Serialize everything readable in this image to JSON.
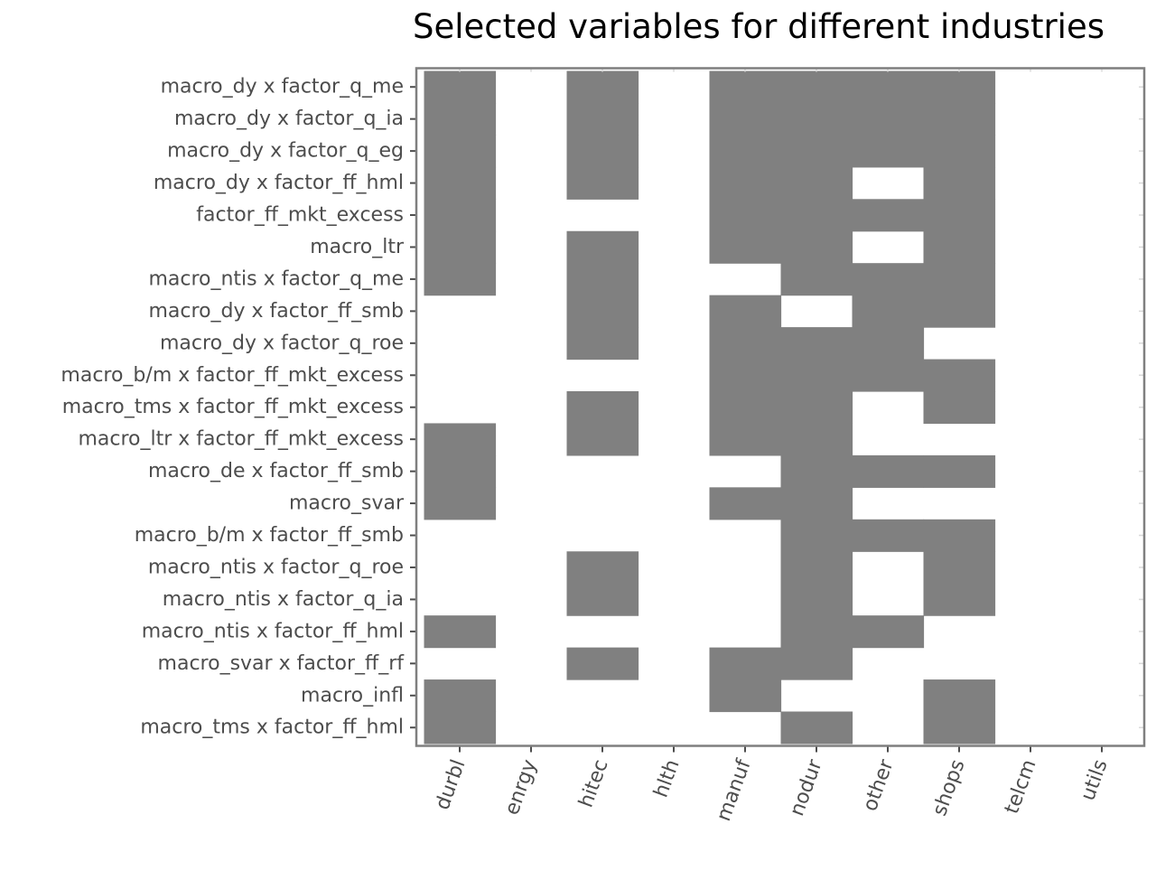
{
  "chart_data": {
    "type": "heatmap",
    "title": "Selected variables for different industries",
    "xlabel": "",
    "ylabel": "",
    "grid": false,
    "legend": "none",
    "x_categories": [
      "durbl",
      "enrgy",
      "hitec",
      "hlth",
      "manuf",
      "nodur",
      "other",
      "shops",
      "telcm",
      "utils"
    ],
    "y_categories": [
      "macro_dy x factor_q_me",
      "macro_dy x factor_q_ia",
      "macro_dy x factor_q_eg",
      "macro_dy x factor_ff_hml",
      "factor_ff_mkt_excess",
      "macro_ltr",
      "macro_ntis x factor_q_me",
      "macro_dy x factor_ff_smb",
      "macro_dy x factor_q_roe",
      "macro_b/m x factor_ff_mkt_excess",
      "macro_tms x factor_ff_mkt_excess",
      "macro_ltr x factor_ff_mkt_excess",
      "macro_de x factor_ff_smb",
      "macro_svar",
      "macro_b/m x factor_ff_smb",
      "macro_ntis x factor_q_roe",
      "macro_ntis x factor_q_ia",
      "macro_ntis x factor_ff_hml",
      "macro_svar x factor_ff_rf",
      "macro_infl",
      "macro_tms x factor_ff_hml"
    ],
    "selected": [
      [
        1,
        0,
        1,
        0,
        1,
        1,
        1,
        1,
        0,
        0
      ],
      [
        1,
        0,
        1,
        0,
        1,
        1,
        1,
        1,
        0,
        0
      ],
      [
        1,
        0,
        1,
        0,
        1,
        1,
        1,
        1,
        0,
        0
      ],
      [
        1,
        0,
        1,
        0,
        1,
        1,
        0,
        1,
        0,
        0
      ],
      [
        1,
        0,
        0,
        0,
        1,
        1,
        1,
        1,
        0,
        0
      ],
      [
        1,
        0,
        1,
        0,
        1,
        1,
        0,
        1,
        0,
        0
      ],
      [
        1,
        0,
        1,
        0,
        0,
        1,
        1,
        1,
        0,
        0
      ],
      [
        0,
        0,
        1,
        0,
        1,
        0,
        1,
        1,
        0,
        0
      ],
      [
        0,
        0,
        1,
        0,
        1,
        1,
        1,
        0,
        0,
        0
      ],
      [
        0,
        0,
        0,
        0,
        1,
        1,
        1,
        1,
        0,
        0
      ],
      [
        0,
        0,
        1,
        0,
        1,
        1,
        0,
        1,
        0,
        0
      ],
      [
        1,
        0,
        1,
        0,
        1,
        1,
        0,
        0,
        0,
        0
      ],
      [
        1,
        0,
        0,
        0,
        0,
        1,
        1,
        1,
        0,
        0
      ],
      [
        1,
        0,
        0,
        0,
        1,
        1,
        0,
        0,
        0,
        0
      ],
      [
        0,
        0,
        0,
        0,
        0,
        1,
        1,
        1,
        0,
        0
      ],
      [
        0,
        0,
        1,
        0,
        0,
        1,
        0,
        1,
        0,
        0
      ],
      [
        0,
        0,
        1,
        0,
        0,
        1,
        0,
        1,
        0,
        0
      ],
      [
        1,
        0,
        0,
        0,
        0,
        1,
        1,
        0,
        0,
        0
      ],
      [
        0,
        0,
        1,
        0,
        1,
        1,
        0,
        0,
        0,
        0
      ],
      [
        1,
        0,
        0,
        0,
        1,
        0,
        0,
        1,
        0,
        0
      ],
      [
        1,
        0,
        0,
        0,
        0,
        1,
        0,
        1,
        0,
        0
      ]
    ],
    "colors": {
      "selected_fill": "#808080",
      "background": "#ffffff",
      "panel_border": "#7f7f7f",
      "tick": "#4d4d4d",
      "tick_label": "#4d4d4d",
      "title": "#000000"
    }
  }
}
